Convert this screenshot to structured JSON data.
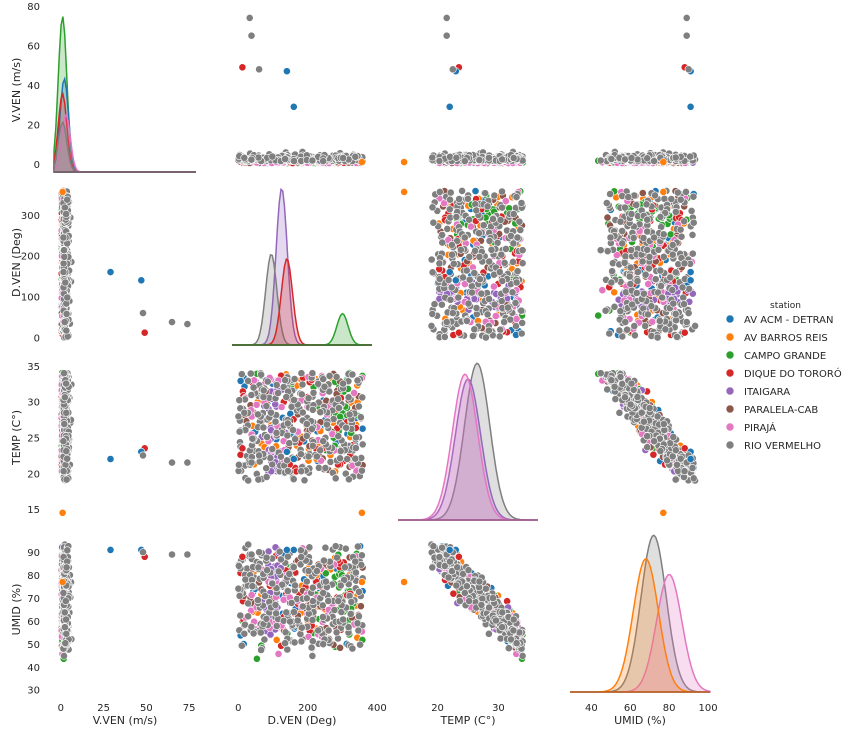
{
  "chart_data": {
    "type": "scatter",
    "subtype": "pairplot",
    "variables": [
      "V.VEN (m/s)",
      "D.VEN (Deg)",
      "TEMP (C°)",
      "UMID (%)"
    ],
    "diagonal": "kde",
    "legend": {
      "title": "station",
      "placement": "right",
      "entries": [
        {
          "name": "AV ACM - DETRAN",
          "color": "#1f77b4"
        },
        {
          "name": "AV BARROS REIS",
          "color": "#ff7f0e"
        },
        {
          "name": "CAMPO GRANDE",
          "color": "#2ca02c"
        },
        {
          "name": "DIQUE DO TORORÓ",
          "color": "#d62728"
        },
        {
          "name": "ITAIGARA",
          "color": "#9467bd"
        },
        {
          "name": "PARALELA-CAB",
          "color": "#8c564b"
        },
        {
          "name": "PIRAJÁ",
          "color": "#e377c2"
        },
        {
          "name": "RIO VERMELHO",
          "color": "#7f7f7f"
        }
      ]
    },
    "axes": {
      "vven": {
        "label": "V.VEN (m/s)",
        "range": [
          -4,
          79
        ],
        "ticks": [
          "0",
          "25",
          "50",
          "75"
        ],
        "ticks_y": [
          "0",
          "20",
          "40",
          "60",
          "80"
        ]
      },
      "dven": {
        "label": "D.VEN (Deg)",
        "range": [
          -18,
          385
        ],
        "ticks": [
          "0",
          "200",
          "400"
        ],
        "ticks_y": [
          "0",
          "100",
          "200",
          "300"
        ]
      },
      "temp": {
        "label": "TEMP (C°)",
        "range": [
          13.5,
          36.5
        ],
        "ticks": [
          "20",
          "30"
        ],
        "ticks_y": [
          "15",
          "20",
          "25",
          "30",
          "35"
        ]
      },
      "umid": {
        "label": "UMID (%)",
        "range": [
          29,
          101
        ],
        "ticks": [
          "40",
          "60",
          "80",
          "100"
        ],
        "ticks_y": [
          "30",
          "40",
          "50",
          "60",
          "70",
          "80",
          "90"
        ]
      }
    },
    "grid": false,
    "notes_points": {
      "outliers": [
        {
          "station": "RIO VERMELHO",
          "vven": 74,
          "dven": 33,
          "temp": 21.5,
          "umid": 89
        },
        {
          "station": "RIO VERMELHO",
          "vven": 65,
          "dven": 38,
          "temp": 21.5,
          "umid": 89
        },
        {
          "station": "DIQUE DO TORORÓ",
          "vven": 49,
          "dven": 12,
          "temp": 23.5,
          "umid": 88
        },
        {
          "station": "AV ACM - DETRAN",
          "vven": 47,
          "dven": 140,
          "temp": 23,
          "umid": 91
        },
        {
          "station": "RIO VERMELHO",
          "vven": 48,
          "dven": 60,
          "temp": 22.5,
          "umid": 90
        },
        {
          "station": "AV ACM - DETRAN",
          "vven": 29,
          "dven": 160,
          "temp": 22,
          "umid": 91
        },
        {
          "station": "AV BARROS REIS",
          "vven": 1,
          "dven": 356,
          "temp": 14.5,
          "umid": 77
        }
      ]
    },
    "kde": {
      "vven": [
        {
          "station": "CAMPO GRANDE",
          "peak_x": 1,
          "peak": 1.0
        },
        {
          "station": "AV ACM - DETRAN",
          "peak_x": 2,
          "peak": 0.6
        },
        {
          "station": "DIQUE DO TORORÓ",
          "peak_x": 1,
          "peak": 0.5
        },
        {
          "station": "PIRAJÁ",
          "peak_x": 3,
          "peak": 0.37
        },
        {
          "station": "RIO VERMELHO",
          "peak_x": 1,
          "peak": 0.32
        }
      ],
      "dven": [
        {
          "station": "ITAIGARA",
          "peak_x": 125,
          "peak": 1.0
        },
        {
          "station": "RIO VERMELHO",
          "peak_x": 95,
          "peak": 0.58
        },
        {
          "station": "DIQUE DO TORORÓ",
          "peak_x": 140,
          "peak": 0.55
        },
        {
          "station": "CAMPO GRANDE",
          "peak_x": 300,
          "peak": 0.2
        }
      ],
      "temp": [
        {
          "station": "RIO VERMELHO",
          "peak_x": 26.5,
          "peak": 1.0
        },
        {
          "station": "ITAIGARA",
          "peak_x": 25,
          "peak": 0.9
        },
        {
          "station": "PIRAJÁ",
          "peak_x": 24.5,
          "peak": 0.93
        }
      ],
      "umid": [
        {
          "station": "RIO VERMELHO",
          "peak_x": 72,
          "peak": 1.0
        },
        {
          "station": "PIRAJÁ",
          "peak_x": 80,
          "peak": 0.75
        },
        {
          "station": "AV BARROS REIS",
          "peak_x": 68,
          "peak": 0.85
        }
      ]
    }
  }
}
